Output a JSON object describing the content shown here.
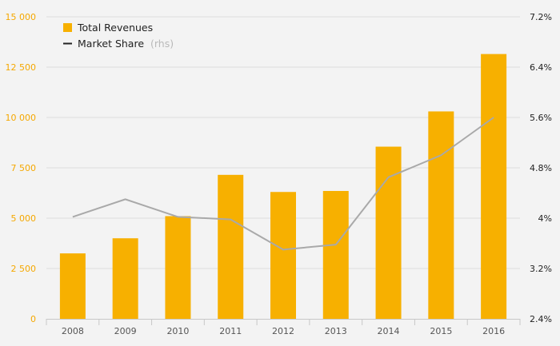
{
  "chart_data": {
    "type": "bar",
    "title": "",
    "categories": [
      "2008",
      "2009",
      "2010",
      "2011",
      "2012",
      "2013",
      "2014",
      "2015",
      "2016"
    ],
    "series": [
      {
        "name": "Total Revenues",
        "kind": "bar",
        "axis": "left",
        "color": "#f7b000",
        "values": [
          3250,
          4000,
          5100,
          7150,
          6300,
          6350,
          8550,
          10300,
          13150
        ]
      },
      {
        "name": "Market Share",
        "note": "(rhs)",
        "kind": "line",
        "axis": "right",
        "color": "#a9a9a9",
        "values": [
          4.02,
          4.3,
          4.02,
          3.98,
          3.5,
          3.58,
          4.65,
          5.0,
          5.6
        ]
      }
    ],
    "y_left": {
      "ylim": [
        0,
        15000
      ],
      "ticks": [
        0,
        2500,
        5000,
        7500,
        10000,
        12500,
        15000
      ],
      "tick_labels": [
        "0",
        "2 500",
        "5 000",
        "7 500",
        "10 000",
        "12 500",
        "15 000"
      ],
      "color": "#f5a800"
    },
    "y_right": {
      "ylim": [
        2.4,
        7.2
      ],
      "ticks": [
        2.4,
        3.2,
        4.0,
        4.8,
        5.6,
        6.4,
        7.2
      ],
      "tick_labels": [
        "2.4%",
        "3.2%",
        "4%",
        "4.8%",
        "5.6%",
        "6.4%",
        "7.2%"
      ],
      "color": "#222222"
    },
    "legend": [
      {
        "label": "Total Revenues",
        "marker": "square",
        "color": "#f7b000"
      },
      {
        "label": "Market Share",
        "note": "(rhs)",
        "marker": "line",
        "color": "#222222"
      }
    ],
    "legend_position": "top-left",
    "grid": true
  }
}
